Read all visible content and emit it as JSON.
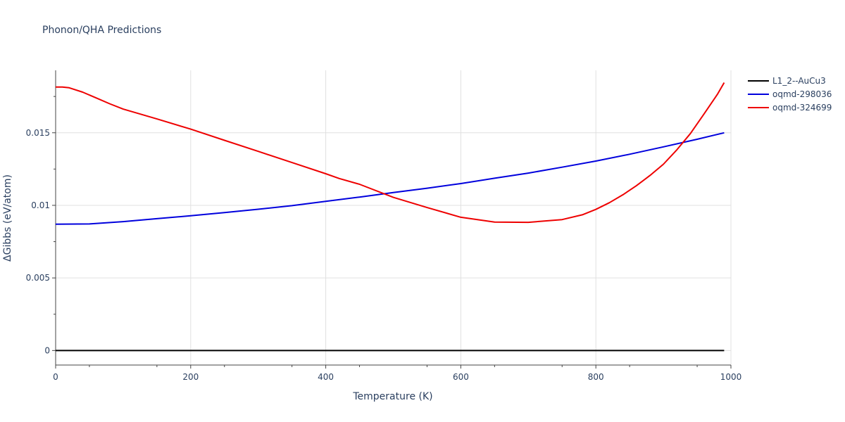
{
  "chart_data": {
    "type": "line",
    "title": "Phonon/QHA Predictions",
    "xlabel": "Temperature (K)",
    "ylabel": "ΔGibbs (eV/atom)",
    "xlim": [
      0,
      1000
    ],
    "ylim": [
      -0.001,
      0.0193
    ],
    "xticks": [
      0,
      200,
      400,
      600,
      800,
      1000
    ],
    "xtick_labels": [
      "0",
      "200",
      "400",
      "600",
      "800",
      "1000"
    ],
    "yticks": [
      0,
      0.005,
      0.01,
      0.015
    ],
    "ytick_labels": [
      "0",
      "0.005",
      "0.01",
      "0.015"
    ],
    "grid": true,
    "legend_position": "top-right",
    "series": [
      {
        "name": "L1_2--AuCu3",
        "color": "#000000",
        "x": [
          0,
          990
        ],
        "y": [
          0,
          0
        ]
      },
      {
        "name": "oqmd-298036",
        "color": "#0000dd",
        "x": [
          0,
          50,
          100,
          150,
          200,
          250,
          300,
          350,
          400,
          450,
          500,
          550,
          600,
          650,
          700,
          750,
          800,
          850,
          900,
          950,
          990
        ],
        "y": [
          0.0087,
          0.00872,
          0.00888,
          0.00908,
          0.00928,
          0.0095,
          0.00973,
          0.00998,
          0.01028,
          0.01057,
          0.01088,
          0.01118,
          0.0115,
          0.01187,
          0.01222,
          0.01263,
          0.01305,
          0.01352,
          0.01403,
          0.01455,
          0.015
        ]
      },
      {
        "name": "oqmd-324699",
        "color": "#ee0000",
        "x": [
          0,
          10,
          20,
          40,
          60,
          80,
          100,
          150,
          200,
          250,
          300,
          350,
          400,
          420,
          450,
          500,
          550,
          600,
          650,
          700,
          750,
          780,
          800,
          820,
          840,
          860,
          880,
          900,
          920,
          940,
          960,
          980,
          990
        ],
        "y": [
          0.01815,
          0.01815,
          0.0181,
          0.0178,
          0.0174,
          0.017,
          0.01663,
          0.01595,
          0.01525,
          0.01448,
          0.01372,
          0.01295,
          0.01218,
          0.01185,
          0.01145,
          0.01055,
          0.00985,
          0.00918,
          0.00885,
          0.00883,
          0.00902,
          0.00935,
          0.00972,
          0.01018,
          0.01073,
          0.01135,
          0.01205,
          0.01283,
          0.01383,
          0.01495,
          0.01628,
          0.01765,
          0.01845
        ]
      }
    ]
  }
}
